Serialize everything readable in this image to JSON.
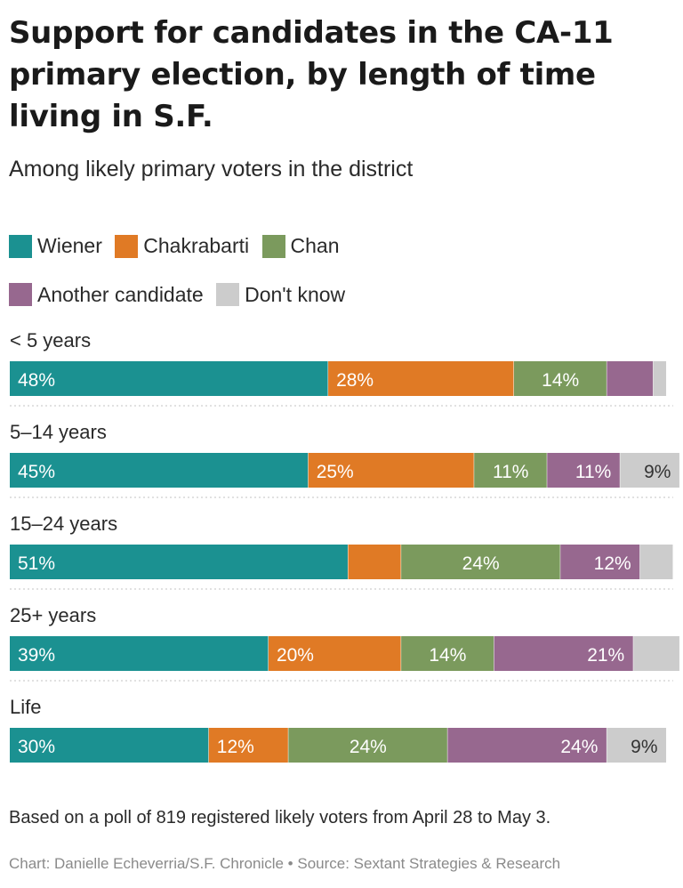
{
  "chart_data": {
    "type": "bar",
    "orientation": "horizontal",
    "stacked": true,
    "title": "Support for candidates in the CA-11 primary election, by length of time living in S.F.",
    "subtitle": "Among likely primary voters in the district",
    "categories": [
      "< 5 years",
      "5–14 years",
      "15–24 years",
      "25+ years",
      "Life"
    ],
    "series": [
      {
        "name": "Wiener",
        "color": "#1b9191",
        "values": [
          48,
          45,
          51,
          39,
          30
        ],
        "labels": [
          "48%",
          "45%",
          "51%",
          "39%",
          "30%"
        ]
      },
      {
        "name": "Chakrabarti",
        "color": "#e07a25",
        "values": [
          28,
          25,
          8,
          20,
          12
        ],
        "labels": [
          "28%",
          "25%",
          "",
          "20%",
          "12%"
        ]
      },
      {
        "name": "Chan",
        "color": "#7b9a5d",
        "values": [
          14,
          11,
          24,
          14,
          24
        ],
        "labels": [
          "14%",
          "11%",
          "24%",
          "14%",
          "24%"
        ]
      },
      {
        "name": "Another candidate",
        "color": "#97688f",
        "values": [
          7,
          11,
          12,
          21,
          24
        ],
        "labels": [
          "",
          "11%",
          "12%",
          "21%",
          "24%"
        ]
      },
      {
        "name": "Don't know",
        "color": "#cccccc",
        "values": [
          2,
          9,
          5,
          7,
          9
        ],
        "labels": [
          "",
          "9%",
          "",
          "",
          "9%"
        ]
      }
    ],
    "xlim": [
      0,
      100
    ],
    "grid": false,
    "legend_position": "top"
  },
  "legend": {
    "wiener": "Wiener",
    "chakrabarti": "Chakrabarti",
    "chan": "Chan",
    "another": "Another candidate",
    "dont_know": "Don't know"
  },
  "footnote": "Based on a poll of 819 registered likely voters from April 28 to May 3.",
  "credit": "Chart: Danielle Echeverria/S.F. Chronicle • Source: Sextant Strategies & Research"
}
